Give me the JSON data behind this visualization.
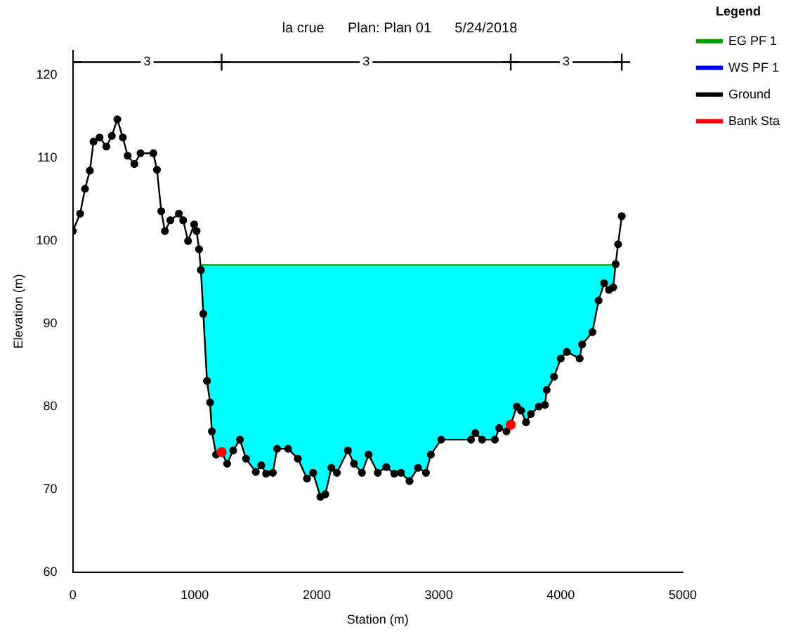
{
  "chart_data": {
    "type": "line",
    "title": "la crue      Plan: Plan 01      5/24/2018",
    "xlabel": "Station (m)",
    "ylabel": "Elevation (m)",
    "legend_title": "Legend",
    "legend": "right",
    "grid": false,
    "xlim": [
      0,
      5000
    ],
    "xticks": [
      0,
      1000,
      2000,
      3000,
      4000,
      5000
    ],
    "ylim": [
      60,
      123
    ],
    "yticks": [
      60,
      70,
      80,
      90,
      100,
      110,
      120
    ],
    "series": [
      {
        "name": "EG PF 1",
        "color": "#00a000",
        "x": [
          1045,
          4449
        ],
        "values": [
          97.1,
          97.1
        ],
        "marker": "none"
      },
      {
        "name": "WS PF 1",
        "color": "#0000ff",
        "marker": "none",
        "x": [
          1045,
          1050,
          1070,
          1100,
          1125,
          1140,
          1175,
          1220,
          1265,
          1315,
          1370,
          1420,
          1500,
          1545,
          1585,
          1640,
          1675,
          1765,
          1845,
          1920,
          1970,
          2030,
          2070,
          2120,
          2165,
          2255,
          2305,
          2370,
          2425,
          2500,
          2570,
          2635,
          2690,
          2760,
          2830,
          2895,
          2935,
          3020,
          3265,
          3300,
          3355,
          3460,
          3495,
          3555,
          3590,
          3640,
          3675,
          3715,
          3755,
          3820,
          3870,
          3885,
          3945,
          4000,
          4050,
          4155,
          4175,
          4260,
          4310,
          4355,
          4395,
          4430,
          4449
        ],
        "values": [
          null,
          null,
          null,
          null,
          null,
          null,
          null,
          null,
          null,
          null,
          null,
          null,
          null,
          null,
          null,
          null,
          null,
          null,
          null,
          null,
          null,
          null,
          null,
          null,
          null,
          null,
          null,
          null,
          null,
          null,
          null,
          null,
          null,
          null,
          null,
          null,
          null,
          null,
          null,
          null,
          null,
          null,
          null,
          null,
          null,
          null,
          null,
          null,
          null,
          null,
          null,
          null,
          null,
          null,
          null,
          null,
          null,
          null,
          null,
          null,
          null,
          null,
          null
        ],
        "lower": [
          97.1,
          96.5,
          91.2,
          83.1,
          80.5,
          77,
          74.2,
          74.5,
          73.1,
          74.7,
          76,
          73.7,
          72.1,
          72.9,
          71.9,
          72,
          74.9,
          74.9,
          73.7,
          71.3,
          72,
          69.1,
          69.4,
          72.6,
          72,
          74.7,
          73.1,
          72,
          74.2,
          72,
          72.7,
          71.9,
          72,
          71,
          72.6,
          72,
          74.2,
          76,
          76,
          76.8,
          76,
          76,
          77.4,
          77,
          77.8,
          80,
          79.5,
          78.1,
          79.1,
          80,
          80.2,
          82,
          83.6,
          85.8,
          86.6,
          85.8,
          87.5,
          89,
          92.8,
          94.9,
          94.1,
          94.4,
          97.1
        ],
        "upper": [
          97.1,
          97.1,
          97.1,
          97.1,
          97.1,
          97.1,
          97.1,
          97.1,
          97.1,
          97.1,
          97.1,
          97.1,
          97.1,
          97.1,
          97.1,
          97.1,
          97.1,
          97.1,
          97.1,
          97.1,
          97.1,
          97.1,
          97.1,
          97.1,
          97.1,
          97.1,
          97.1,
          97.1,
          97.1,
          97.1,
          97.1,
          97.1,
          97.1,
          97.1,
          97.1,
          97.1,
          97.1,
          97.1,
          97.1,
          97.1,
          97.1,
          97.1,
          97.1,
          97.1,
          97.1,
          97.1,
          97.1,
          97.1,
          97.1,
          97.1,
          97.1,
          97.1,
          97.1,
          97.1,
          97.1,
          97.1,
          97.1,
          97.1,
          97.1,
          97.1,
          97.1,
          97.1,
          97.1
        ]
      },
      {
        "name": "Ground",
        "color": "#000000",
        "marker": "circle",
        "x": [
          0,
          60,
          100,
          140,
          170,
          220,
          275,
          320,
          365,
          410,
          450,
          505,
          555,
          660,
          690,
          725,
          755,
          800,
          870,
          905,
          945,
          995,
          1015,
          1035,
          1050,
          1070,
          1100,
          1125,
          1140,
          1175,
          1220,
          1265,
          1315,
          1370,
          1420,
          1500,
          1545,
          1585,
          1640,
          1675,
          1765,
          1845,
          1920,
          1970,
          2030,
          2070,
          2120,
          2165,
          2255,
          2305,
          2370,
          2425,
          2500,
          2570,
          2635,
          2690,
          2760,
          2830,
          2895,
          2935,
          3020,
          3265,
          3300,
          3355,
          3460,
          3495,
          3555,
          3590,
          3640,
          3675,
          3715,
          3755,
          3820,
          3870,
          3885,
          3945,
          4000,
          4050,
          4155,
          4175,
          4260,
          4310,
          4355,
          4395,
          4430,
          4450,
          4470,
          4500
        ],
        "values": [
          101.2,
          103.3,
          106.3,
          108.5,
          112,
          112.5,
          111.4,
          112.7,
          114.7,
          112.5,
          110.3,
          109.3,
          110.6,
          110.6,
          108.6,
          103.6,
          101.2,
          102.5,
          103.3,
          102.5,
          100,
          102,
          101.2,
          99,
          96.5,
          91.2,
          83.1,
          80.5,
          77,
          74.2,
          74.5,
          73.1,
          74.7,
          76,
          73.7,
          72.1,
          72.9,
          71.9,
          72,
          74.9,
          74.9,
          73.7,
          71.3,
          72,
          69.1,
          69.4,
          72.6,
          72,
          74.7,
          73.1,
          72,
          74.2,
          72,
          72.7,
          71.9,
          72,
          71,
          72.6,
          72,
          74.2,
          76,
          76,
          76.8,
          76,
          76,
          77.4,
          77,
          77.8,
          80,
          79.5,
          78.1,
          79.1,
          80,
          80.2,
          82,
          83.6,
          85.8,
          86.6,
          85.8,
          87.5,
          89,
          92.8,
          94.9,
          94.1,
          94.4,
          97.2,
          99.6,
          103
        ]
      },
      {
        "type": "scatter",
        "name": "Bank Sta",
        "color": "#ff0000",
        "marker": "circle",
        "x": [
          1220,
          3590
        ],
        "values": [
          74.5,
          77.8
        ]
      },
      {
        "color": "#000000",
        "marker": "cross",
        "x": [
          0,
          1220,
          3590,
          4500
        ],
        "values": [
          121.6,
          121.6,
          121.6,
          121.6
        ]
      }
    ],
    "annotations": [
      {
        "text": "3",
        "x": 610,
        "y": 121.6
      },
      {
        "text": "3",
        "x": 2405,
        "y": 121.6
      },
      {
        "text": "3",
        "x": 4045,
        "y": 121.6
      }
    ]
  }
}
